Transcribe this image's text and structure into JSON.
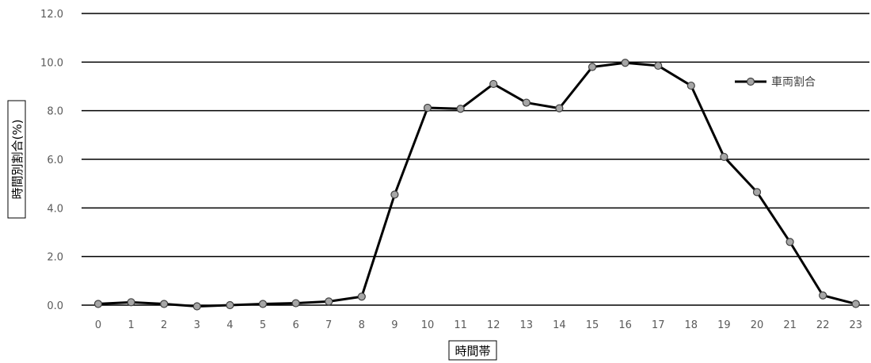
{
  "chart_data": {
    "type": "line",
    "x": [
      "0",
      "1",
      "2",
      "3",
      "4",
      "5",
      "6",
      "7",
      "8",
      "9",
      "10",
      "11",
      "12",
      "13",
      "14",
      "15",
      "16",
      "17",
      "18",
      "19",
      "20",
      "21",
      "22",
      "23"
    ],
    "series": [
      {
        "name": "車両割合",
        "values": [
          0.05,
          0.12,
          0.05,
          -0.05,
          0.0,
          0.05,
          0.08,
          0.15,
          0.35,
          4.55,
          8.12,
          8.08,
          9.1,
          8.33,
          8.1,
          9.8,
          9.97,
          9.85,
          9.03,
          6.1,
          4.65,
          2.6,
          0.4,
          0.05
        ]
      }
    ],
    "yticks": [
      "0.0",
      "2.0",
      "4.0",
      "6.0",
      "8.0",
      "10.0",
      "12.0"
    ],
    "ylim": [
      0,
      12
    ],
    "xlabel": "時間帯",
    "ylabel": "時間別割合(%)",
    "grid": true,
    "legend": "top-right",
    "colors": {
      "line": "#000000",
      "marker_fill": "#a6a6a6",
      "marker_stroke": "#404040",
      "grid": "#000000"
    }
  }
}
